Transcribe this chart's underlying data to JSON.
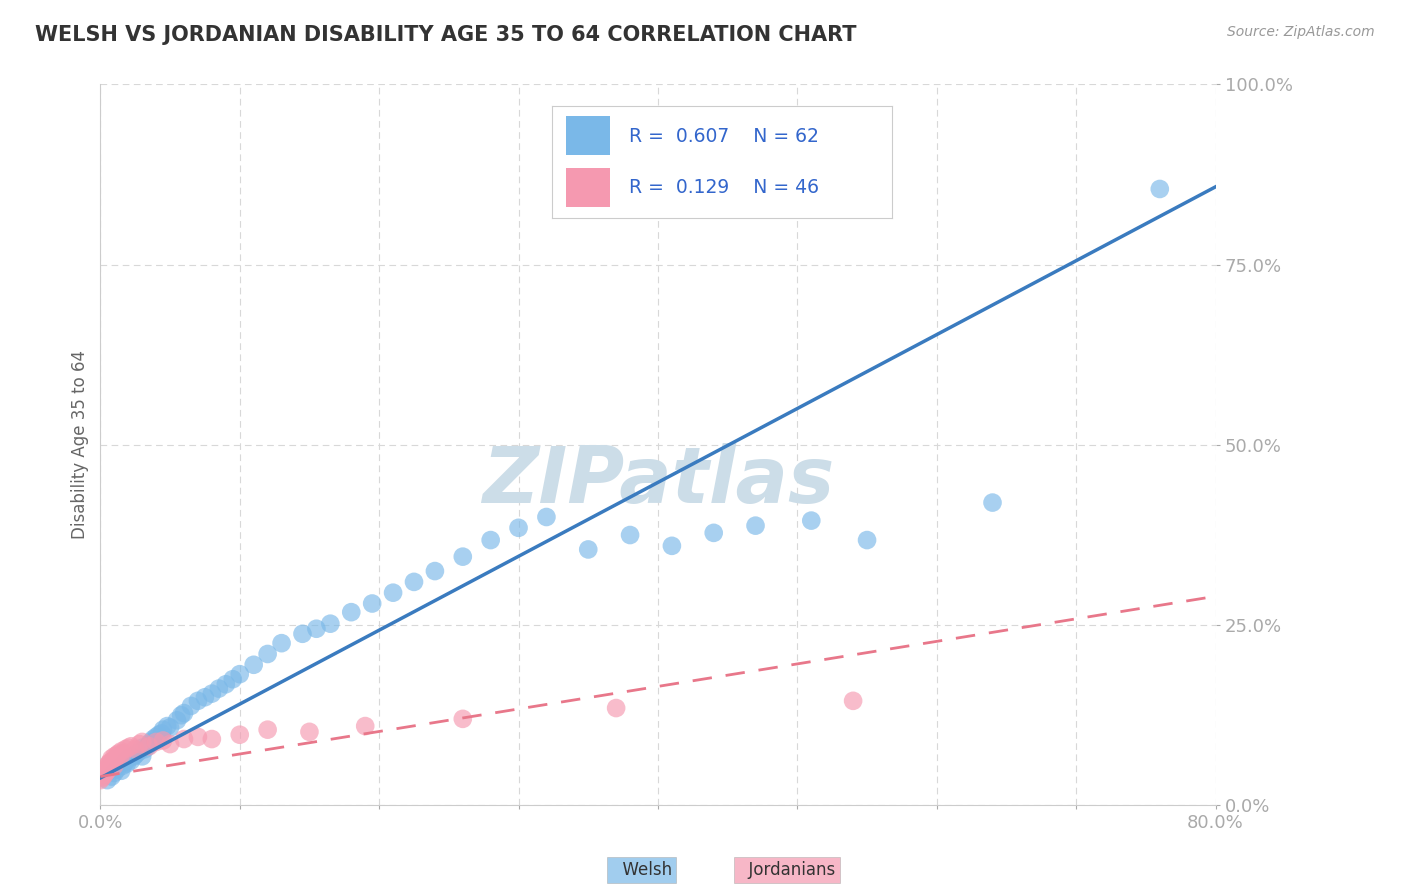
{
  "title": "WELSH VS JORDANIAN DISABILITY AGE 35 TO 64 CORRELATION CHART",
  "source_text": "Source: ZipAtlas.com",
  "ylabel": "Disability Age 35 to 64",
  "xlim": [
    0.0,
    0.8
  ],
  "ylim": [
    0.0,
    1.0
  ],
  "xticks": [
    0.0,
    0.1,
    0.2,
    0.3,
    0.4,
    0.5,
    0.6,
    0.7,
    0.8
  ],
  "yticks": [
    0.0,
    0.25,
    0.5,
    0.75,
    1.0
  ],
  "ytick_labels": [
    "0.0%",
    "25.0%",
    "50.0%",
    "75.0%",
    "100.0%"
  ],
  "welsh_R": 0.607,
  "welsh_N": 62,
  "jordanian_R": 0.129,
  "jordanian_N": 46,
  "welsh_color": "#7ab8e8",
  "jordanian_color": "#f599b0",
  "welsh_line_color": "#3a7bbf",
  "jordanian_line_color": "#e8778a",
  "watermark_color": "#ccdde8",
  "background_color": "#ffffff",
  "grid_color": "#d8d8d8",
  "title_color": "#333333",
  "tick_label_color": "#5588cc",
  "welsh_scatter_x": [
    0.005,
    0.008,
    0.01,
    0.012,
    0.015,
    0.016,
    0.018,
    0.019,
    0.02,
    0.022,
    0.024,
    0.025,
    0.026,
    0.028,
    0.03,
    0.03,
    0.032,
    0.034,
    0.035,
    0.036,
    0.038,
    0.04,
    0.042,
    0.044,
    0.045,
    0.048,
    0.05,
    0.055,
    0.058,
    0.06,
    0.065,
    0.07,
    0.075,
    0.08,
    0.085,
    0.09,
    0.095,
    0.1,
    0.11,
    0.12,
    0.13,
    0.145,
    0.155,
    0.165,
    0.18,
    0.195,
    0.21,
    0.225,
    0.24,
    0.26,
    0.28,
    0.3,
    0.32,
    0.35,
    0.38,
    0.41,
    0.44,
    0.47,
    0.51,
    0.55,
    0.64,
    0.76
  ],
  "welsh_scatter_y": [
    0.035,
    0.04,
    0.045,
    0.05,
    0.048,
    0.055,
    0.06,
    0.058,
    0.065,
    0.062,
    0.068,
    0.07,
    0.072,
    0.075,
    0.068,
    0.08,
    0.078,
    0.082,
    0.085,
    0.088,
    0.092,
    0.095,
    0.098,
    0.1,
    0.105,
    0.11,
    0.108,
    0.118,
    0.125,
    0.128,
    0.138,
    0.145,
    0.15,
    0.155,
    0.162,
    0.168,
    0.175,
    0.182,
    0.195,
    0.21,
    0.225,
    0.238,
    0.245,
    0.252,
    0.268,
    0.28,
    0.295,
    0.31,
    0.325,
    0.345,
    0.368,
    0.385,
    0.4,
    0.355,
    0.375,
    0.36,
    0.378,
    0.388,
    0.395,
    0.368,
    0.42,
    0.855
  ],
  "jordanian_scatter_x": [
    0.0,
    0.001,
    0.001,
    0.002,
    0.002,
    0.003,
    0.003,
    0.004,
    0.004,
    0.005,
    0.005,
    0.006,
    0.006,
    0.007,
    0.007,
    0.008,
    0.008,
    0.009,
    0.01,
    0.01,
    0.011,
    0.012,
    0.013,
    0.014,
    0.015,
    0.016,
    0.018,
    0.02,
    0.022,
    0.025,
    0.028,
    0.03,
    0.035,
    0.04,
    0.045,
    0.05,
    0.06,
    0.07,
    0.08,
    0.1,
    0.12,
    0.15,
    0.19,
    0.26,
    0.37,
    0.54
  ],
  "jordanian_scatter_y": [
    0.035,
    0.038,
    0.042,
    0.04,
    0.045,
    0.043,
    0.048,
    0.046,
    0.05,
    0.048,
    0.055,
    0.052,
    0.058,
    0.055,
    0.06,
    0.058,
    0.065,
    0.062,
    0.055,
    0.068,
    0.065,
    0.07,
    0.072,
    0.068,
    0.075,
    0.072,
    0.078,
    0.08,
    0.082,
    0.078,
    0.085,
    0.088,
    0.082,
    0.088,
    0.09,
    0.085,
    0.092,
    0.095,
    0.092,
    0.098,
    0.105,
    0.102,
    0.11,
    0.12,
    0.135,
    0.145
  ],
  "welsh_line_y0": 0.038,
  "welsh_line_y1": 0.858,
  "jordanian_line_y0": 0.04,
  "jordanian_line_y1": 0.29
}
